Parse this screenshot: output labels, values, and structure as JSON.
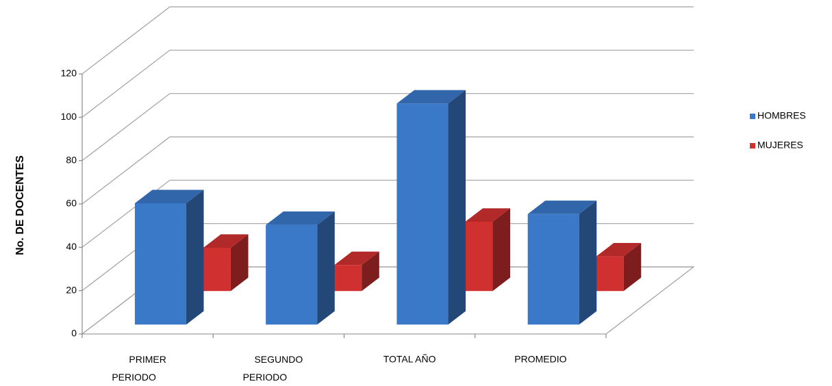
{
  "chart_data": {
    "type": "bar3d",
    "y_label": "No. DE DOCENTES",
    "categories": [
      "PRIMER PERIODO",
      "SEGUNDO PERIODO",
      "TOTAL AÑO",
      "PROMEDIO"
    ],
    "series": [
      {
        "name": "HOMBRES",
        "color": "#3a78c8",
        "values": [
          56,
          46,
          102,
          51
        ]
      },
      {
        "name": "MUJERES",
        "color": "#d03030",
        "values": [
          20,
          12,
          32,
          16
        ]
      }
    ],
    "ylim": [
      0,
      120
    ],
    "yticks": [
      0,
      20,
      40,
      60,
      80,
      100,
      120
    ],
    "grid": true,
    "legend": "right"
  }
}
